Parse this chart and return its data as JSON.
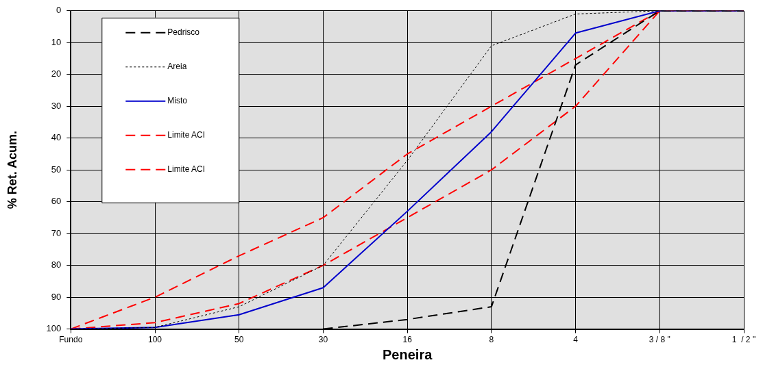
{
  "chart_data": {
    "type": "line",
    "xlabel": "Peneira",
    "ylabel": "% Ret. Acum.",
    "categories": [
      "Fundo",
      "100",
      "50",
      "30",
      "16",
      "8",
      "4",
      "3 / 8 \"",
      "1  / 2 \""
    ],
    "series": [
      {
        "name": "Pedrisco",
        "color": "#000000",
        "line_style": "dashed",
        "values": [
          null,
          null,
          null,
          100,
          97,
          93,
          17,
          0,
          0
        ]
      },
      {
        "name": "Areia",
        "color": "#000000",
        "line_style": "dotted",
        "values": [
          100,
          99.5,
          93,
          80,
          47,
          11,
          1,
          0,
          0
        ]
      },
      {
        "name": "Misto",
        "color": "#0000cc",
        "line_style": "solid",
        "values": [
          100,
          99.5,
          95.5,
          87,
          63,
          38,
          7,
          0,
          0
        ]
      },
      {
        "name": "Limite ACI",
        "color": "#ff0000",
        "line_style": "dashed",
        "values": [
          100,
          90,
          77,
          65,
          45,
          30,
          15,
          0,
          0
        ]
      },
      {
        "name": "Limite ACI",
        "color": "#ff0000",
        "line_style": "dashed",
        "values": [
          100,
          98,
          92,
          80,
          65,
          50,
          30,
          0,
          0
        ]
      }
    ],
    "ylim": [
      100,
      0
    ],
    "yticks": [
      0,
      10,
      20,
      30,
      40,
      50,
      60,
      70,
      80,
      90,
      100
    ],
    "grid": true,
    "legend": "top left",
    "marker": "none"
  }
}
